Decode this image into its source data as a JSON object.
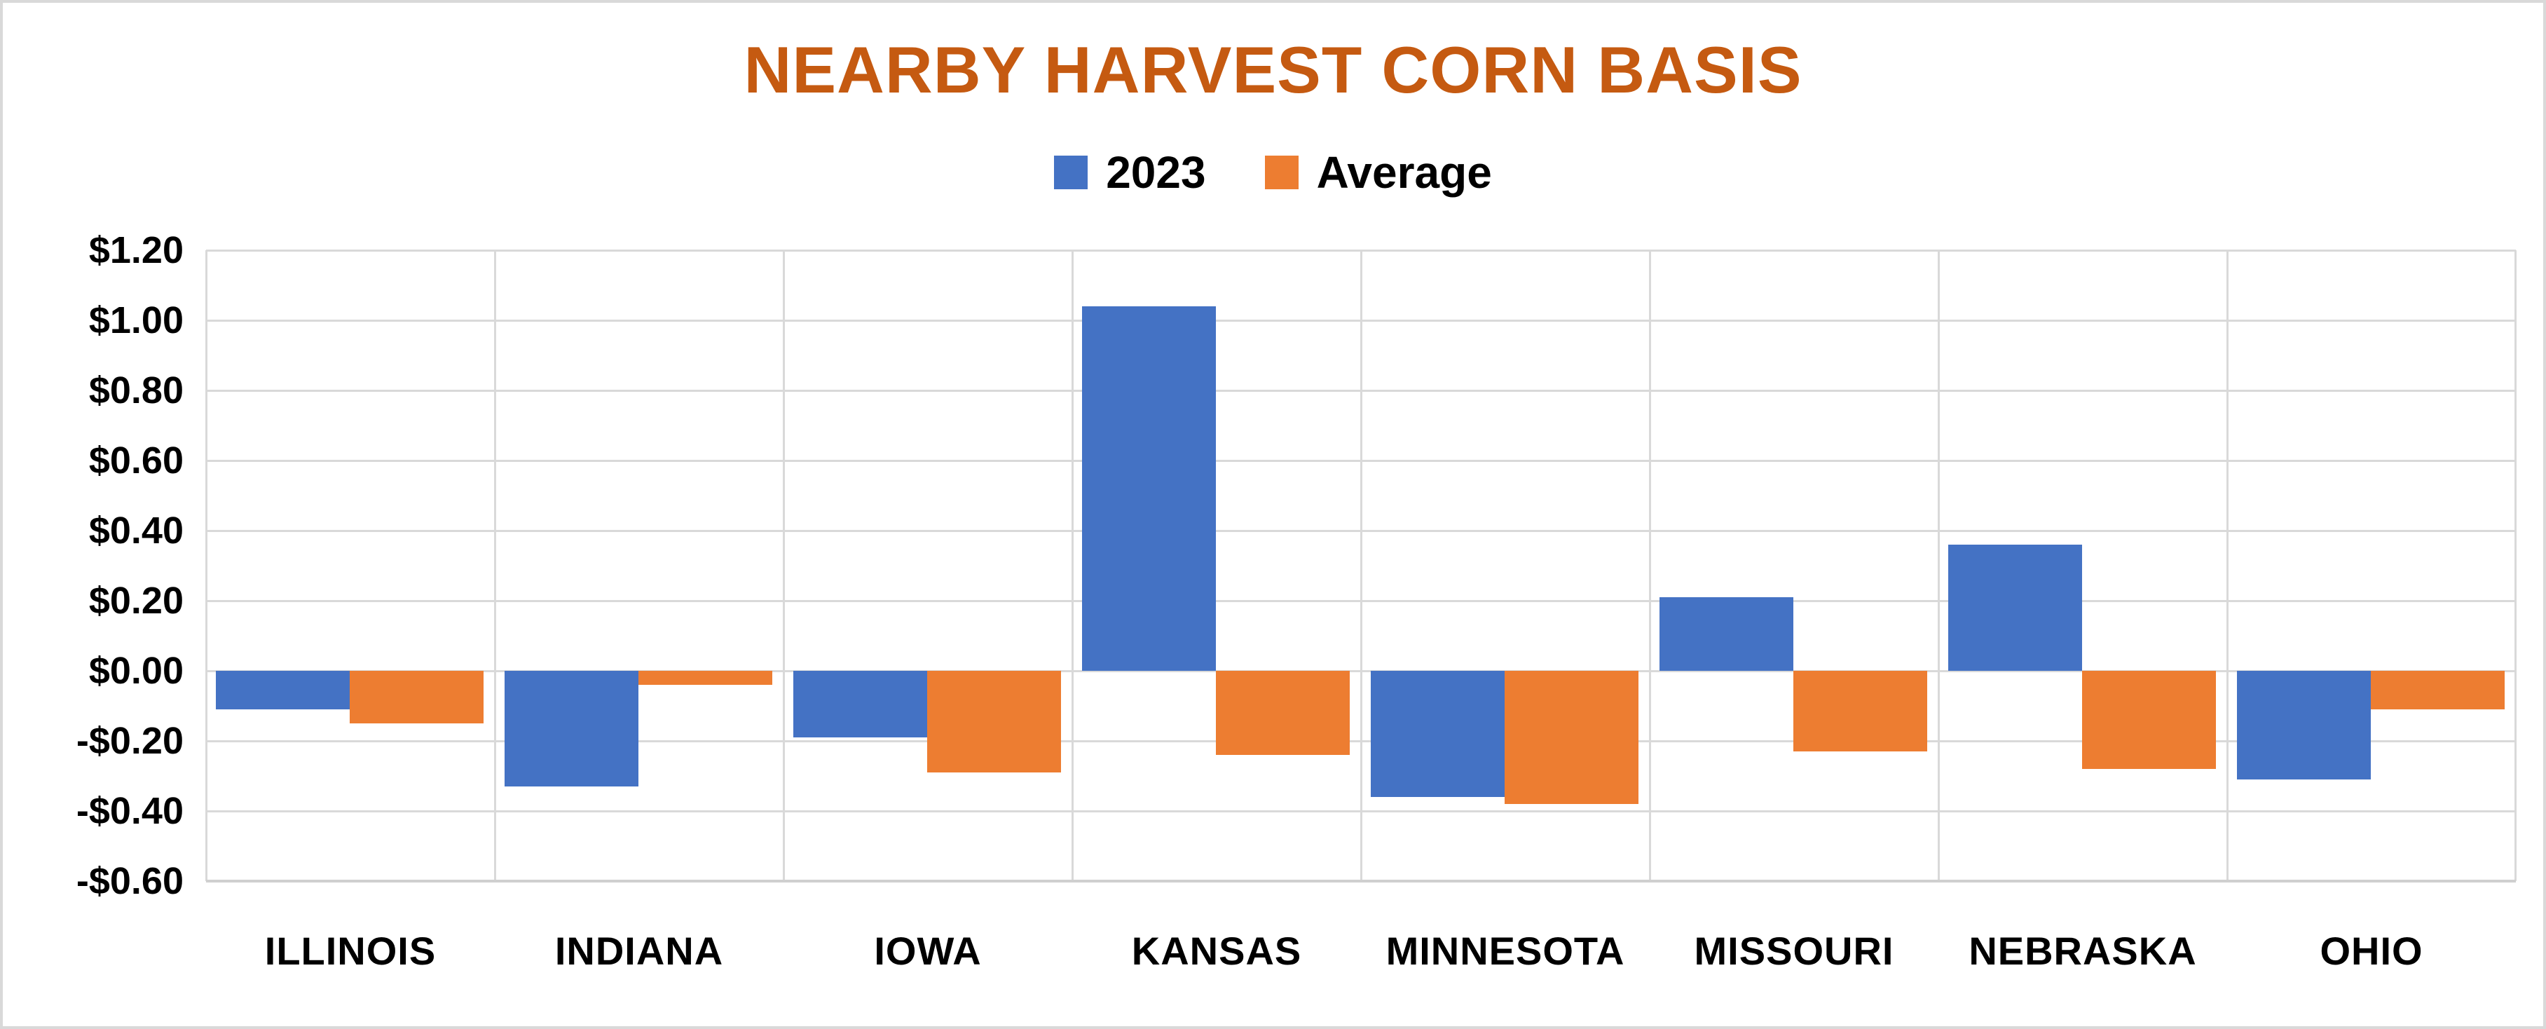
{
  "chart": {
    "title": "NEARBY HARVEST CORN BASIS",
    "title_color": "#C55A11",
    "background_color": "#FFFFFF",
    "gridline_color": "#D9D9D9",
    "series_colors": {
      "2023": "#4472C4",
      "Average": "#ED7D31"
    }
  },
  "chart_data": {
    "type": "bar",
    "title": "NEARBY HARVEST CORN BASIS",
    "categories": [
      "ILLINOIS",
      "INDIANA",
      "IOWA",
      "KANSAS",
      "MINNESOTA",
      "MISSOURI",
      "NEBRASKA",
      "OHIO"
    ],
    "series": [
      {
        "name": "2023",
        "color": "#4472C4",
        "values": [
          -0.11,
          -0.33,
          -0.19,
          1.04,
          -0.36,
          0.21,
          0.36,
          -0.31
        ]
      },
      {
        "name": "Average",
        "color": "#ED7D31",
        "values": [
          -0.15,
          -0.04,
          -0.29,
          -0.24,
          -0.38,
          -0.23,
          -0.28,
          -0.11
        ]
      }
    ],
    "xlabel": "",
    "ylabel": "",
    "ylim": [
      -0.6,
      1.2
    ],
    "y_tick_step": 0.2,
    "y_tick_labels": [
      "$1.20",
      "$1.00",
      "$0.80",
      "$0.60",
      "$0.40",
      "$0.20",
      "$0.00",
      "-$0.20",
      "-$0.40",
      "-$0.60"
    ],
    "grid": true,
    "legend_position": "top"
  }
}
